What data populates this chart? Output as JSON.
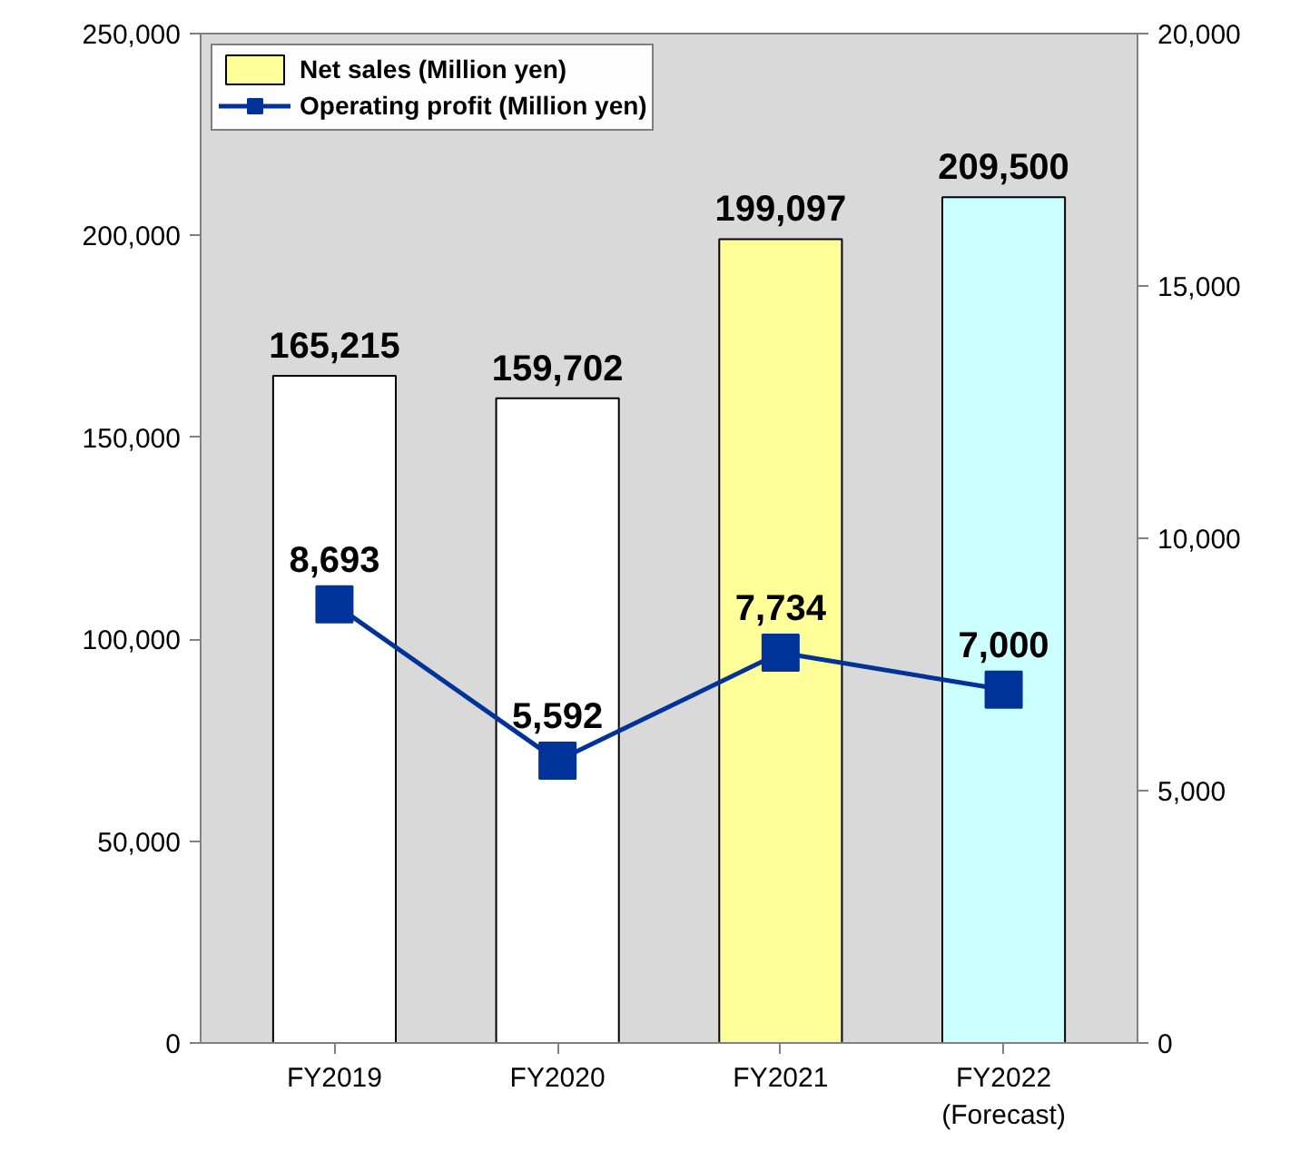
{
  "chart_data": {
    "type": "bar",
    "categories": [
      "FY2019",
      "FY2020",
      "FY2021",
      "FY2022\n(Forecast)"
    ],
    "series": [
      {
        "name": "Net sales (Million yen)",
        "color": "#ffffff",
        "colors": [
          "#ffffff",
          "#ffffff",
          "#ffff99",
          "#ccffff"
        ],
        "values": [
          165215,
          159702,
          199097,
          209500
        ],
        "value_labels": [
          "165,215",
          "159,702",
          "199,097",
          "209,500"
        ]
      },
      {
        "name": "Operating profit (Million yen)",
        "type": "line",
        "axis": "y2",
        "color": "#003399",
        "values": [
          8693,
          5592,
          7734,
          7000
        ],
        "value_labels": [
          "8,693",
          "5,592",
          "7,734",
          "7,000"
        ]
      }
    ],
    "ylim": [
      0,
      250000
    ],
    "yticks": [
      {
        "value": 0,
        "label": "0"
      },
      {
        "value": 50000,
        "label": "50,000"
      },
      {
        "value": 100000,
        "label": "100,000"
      },
      {
        "value": 150000,
        "label": "150,000"
      },
      {
        "value": 200000,
        "label": "200,000"
      },
      {
        "value": 250000,
        "label": "250,000"
      }
    ],
    "y2lim": [
      0,
      20000
    ],
    "y2ticks": [
      {
        "value": 0,
        "label": "0"
      },
      {
        "value": 5000,
        "label": "5,000"
      },
      {
        "value": 10000,
        "label": "10,000"
      },
      {
        "value": 15000,
        "label": "15,000"
      },
      {
        "value": 20000,
        "label": "20,000"
      }
    ],
    "marker": "square",
    "legend": "top left",
    "grid": false
  }
}
